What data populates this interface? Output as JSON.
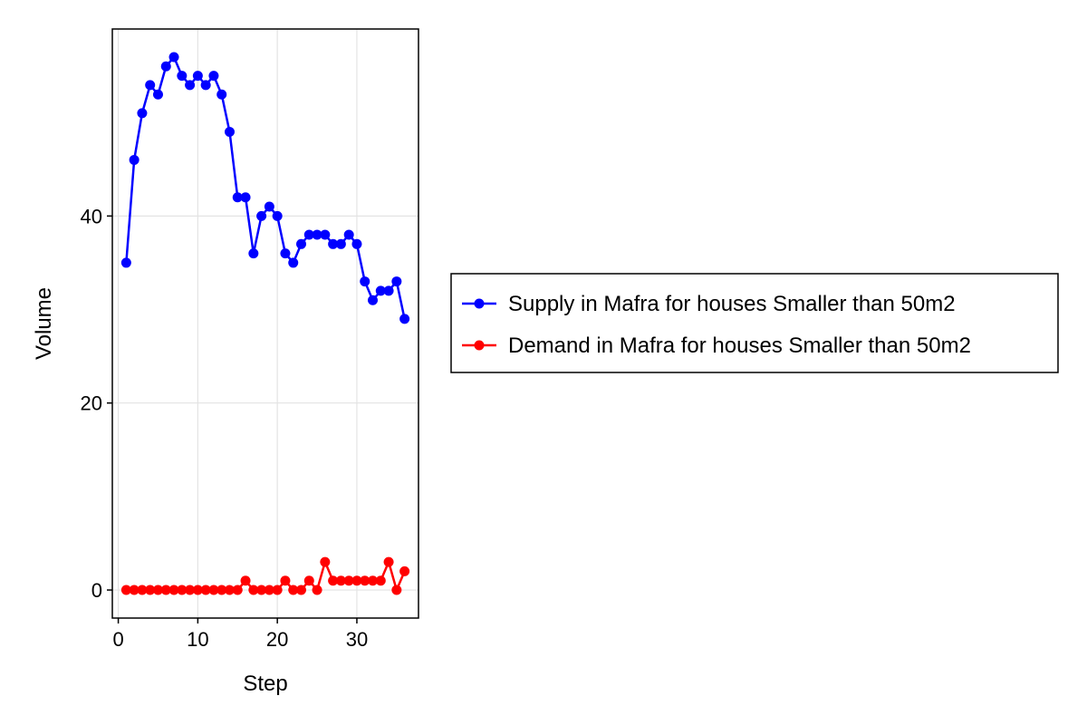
{
  "chart_data": {
    "type": "line",
    "title": "",
    "xlabel": "Step",
    "ylabel": "Volume",
    "xlim": [
      -0.75,
      37.75
    ],
    "ylim": [
      -3,
      60
    ],
    "xticks": [
      0,
      10,
      20,
      30
    ],
    "yticks": [
      0,
      20,
      40
    ],
    "grid": true,
    "legend_position": "right",
    "x": [
      1,
      2,
      3,
      4,
      5,
      6,
      7,
      8,
      9,
      10,
      11,
      12,
      13,
      14,
      15,
      16,
      17,
      18,
      19,
      20,
      21,
      22,
      23,
      24,
      25,
      26,
      27,
      28,
      29,
      30,
      31,
      32,
      33,
      34,
      35,
      36
    ],
    "series": [
      {
        "name": "Supply in Mafra for houses Smaller than 50m2",
        "color": "#0000ff",
        "values": [
          35,
          46,
          51,
          54,
          53,
          56,
          57,
          55,
          54,
          55,
          54,
          55,
          53,
          49,
          42,
          42,
          36,
          40,
          41,
          40,
          36,
          35,
          37,
          38,
          38,
          38,
          37,
          37,
          38,
          37,
          33,
          31,
          32,
          32,
          33,
          29
        ]
      },
      {
        "name": "Demand in Mafra for houses Smaller than 50m2",
        "color": "#ff0000",
        "values": [
          0,
          0,
          0,
          0,
          0,
          0,
          0,
          0,
          0,
          0,
          0,
          0,
          0,
          0,
          0,
          1,
          0,
          0,
          0,
          0,
          1,
          0,
          0,
          1,
          0,
          3,
          1,
          1,
          1,
          1,
          1,
          1,
          1,
          3,
          0,
          2
        ]
      }
    ]
  }
}
